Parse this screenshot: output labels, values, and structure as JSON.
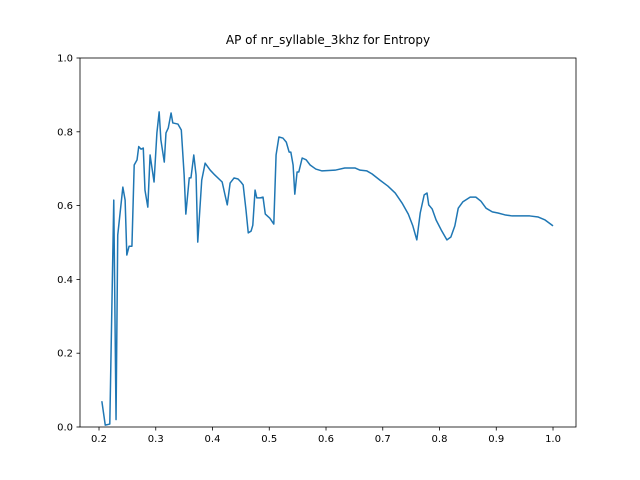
{
  "chart_data": {
    "type": "line",
    "title": "AP of nr_syllable_3khz for Entropy",
    "x": [
      0.205,
      0.211,
      0.219,
      0.226,
      0.23,
      0.233,
      0.242,
      0.246,
      0.249,
      0.253,
      0.258,
      0.262,
      0.267,
      0.27,
      0.274,
      0.278,
      0.281,
      0.286,
      0.29,
      0.297,
      0.302,
      0.306,
      0.309,
      0.315,
      0.318,
      0.322,
      0.327,
      0.33,
      0.339,
      0.345,
      0.35,
      0.353,
      0.359,
      0.362,
      0.367,
      0.371,
      0.374,
      0.381,
      0.387,
      0.396,
      0.404,
      0.417,
      0.422,
      0.426,
      0.431,
      0.438,
      0.445,
      0.45,
      0.454,
      0.459,
      0.463,
      0.468,
      0.471,
      0.475,
      0.478,
      0.484,
      0.489,
      0.493,
      0.501,
      0.508,
      0.512,
      0.517,
      0.524,
      0.53,
      0.535,
      0.538,
      0.542,
      0.545,
      0.549,
      0.552,
      0.558,
      0.565,
      0.572,
      0.582,
      0.593,
      0.616,
      0.633,
      0.651,
      0.66,
      0.672,
      0.681,
      0.695,
      0.709,
      0.722,
      0.734,
      0.745,
      0.753,
      0.76,
      0.766,
      0.773,
      0.778,
      0.781,
      0.787,
      0.794,
      0.803,
      0.813,
      0.82,
      0.827,
      0.833,
      0.841,
      0.854,
      0.864,
      0.873,
      0.882,
      0.893,
      0.903,
      0.915,
      0.928,
      0.942,
      0.959,
      0.974,
      0.986,
      1.0
    ],
    "series": [
      {
        "color": "#1f77b4",
        "values": [
          0.07,
          0.005,
          0.008,
          0.615,
          0.02,
          0.52,
          0.65,
          0.615,
          0.466,
          0.49,
          0.49,
          0.71,
          0.724,
          0.76,
          0.753,
          0.756,
          0.642,
          0.596,
          0.737,
          0.664,
          0.797,
          0.854,
          0.778,
          0.718,
          0.797,
          0.81,
          0.851,
          0.824,
          0.821,
          0.805,
          0.683,
          0.577,
          0.675,
          0.675,
          0.737,
          0.683,
          0.501,
          0.669,
          0.715,
          0.696,
          0.683,
          0.664,
          0.629,
          0.602,
          0.661,
          0.675,
          0.672,
          0.664,
          0.656,
          0.588,
          0.526,
          0.531,
          0.547,
          0.642,
          0.621,
          0.621,
          0.623,
          0.577,
          0.566,
          0.55,
          0.737,
          0.786,
          0.783,
          0.772,
          0.745,
          0.745,
          0.71,
          0.631,
          0.691,
          0.691,
          0.729,
          0.724,
          0.71,
          0.699,
          0.694,
          0.696,
          0.702,
          0.702,
          0.696,
          0.694,
          0.686,
          0.669,
          0.653,
          0.634,
          0.607,
          0.577,
          0.545,
          0.507,
          0.58,
          0.629,
          0.634,
          0.602,
          0.591,
          0.561,
          0.534,
          0.507,
          0.515,
          0.545,
          0.593,
          0.61,
          0.623,
          0.623,
          0.612,
          0.593,
          0.583,
          0.58,
          0.575,
          0.572,
          0.572,
          0.572,
          0.569,
          0.561,
          0.545
        ]
      }
    ],
    "xlim": [
      0.1665,
      1.0405
    ],
    "ylim": [
      0,
      1
    ],
    "xticks": [
      0.2,
      0.3,
      0.4,
      0.5,
      0.6,
      0.7,
      0.8,
      0.9,
      {
        "value": 1,
        "label": "1.0"
      }
    ],
    "yticks": [
      {
        "value": 0,
        "label": "0.0"
      },
      0.2,
      0.4,
      0.6,
      0.8,
      {
        "value": 1,
        "label": "1.0"
      }
    ]
  }
}
